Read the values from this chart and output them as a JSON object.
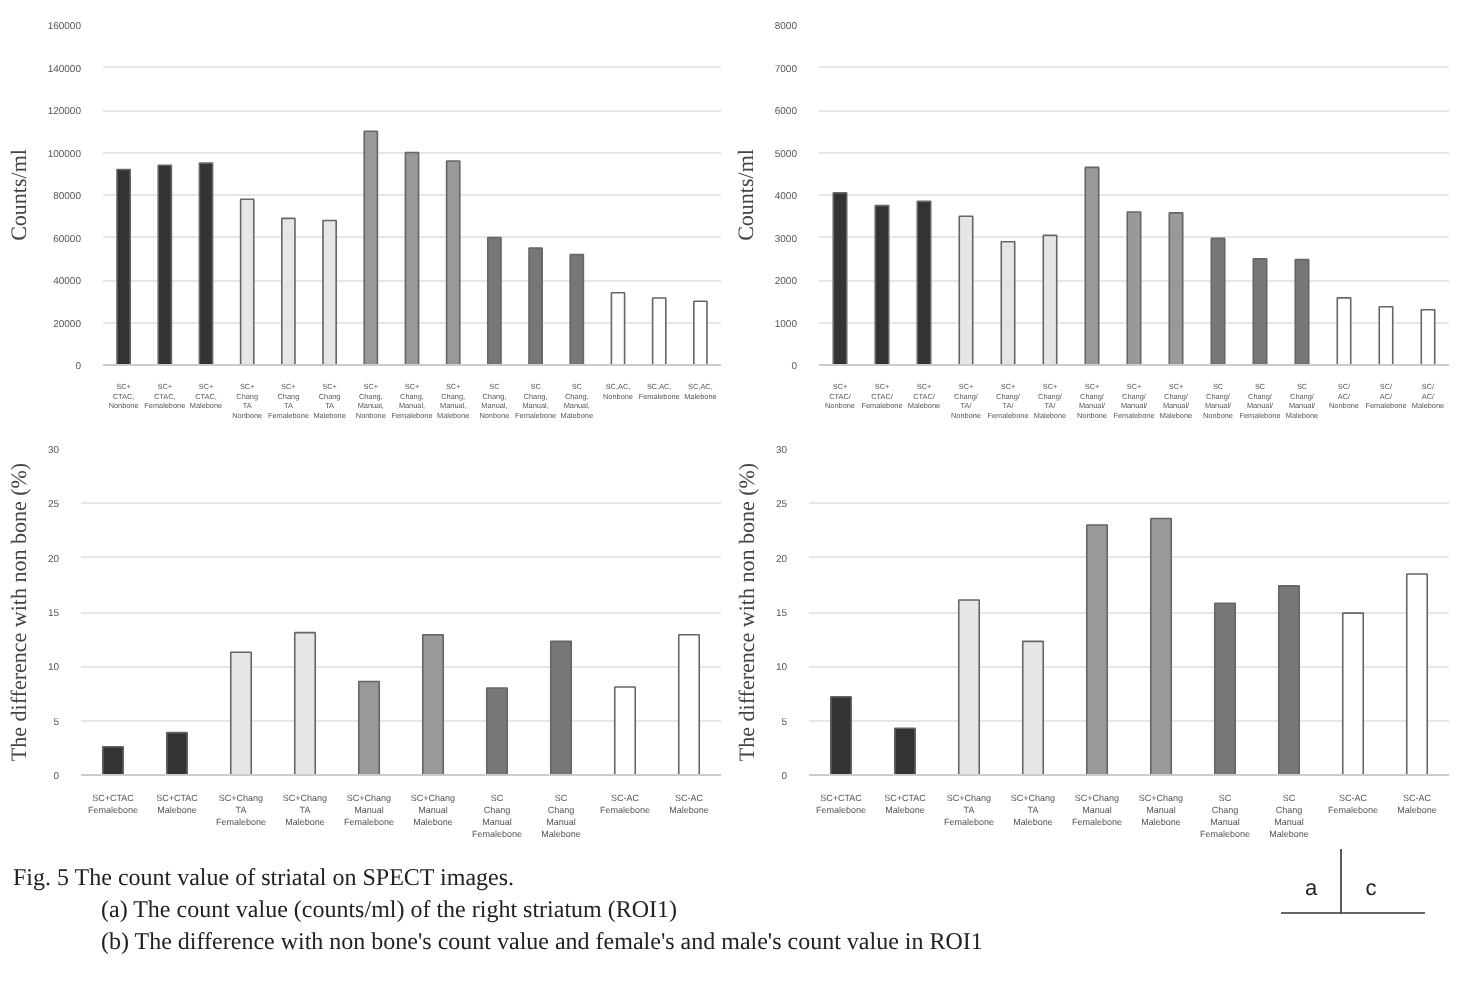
{
  "chart_data": [
    {
      "type": "bar",
      "ylabel": "Counts/ml",
      "categories": [
        "SC+CTAC,\nNonbone",
        "SC+CTAC,\nFemalebone",
        "SC+CTAC,\nMalebone",
        "SC+Chang TA\nNonbone",
        "SC+Chang TA\nFemalebone",
        "SC+Chang TA\nMalebone",
        "SC+Chang,\nManual,\nNonbone",
        "SC+Chang,\nManual,\nFemalebone",
        "SC+Chang,\nManual,\nMalebone",
        "SC Chang,\nManual,\nNonbone",
        "SC Chang,\nManual,\nFemalebone",
        "SC Chang,\nManual,\nMalebone",
        "SC,AC,\nNonbone",
        "SC,AC,\nFemalebone",
        "SC,AC,\nMalebone"
      ],
      "values": [
        92000,
        94000,
        95000,
        78000,
        69000,
        68000,
        110000,
        100000,
        96000,
        60000,
        55000,
        52000,
        34000,
        31500,
        30000
      ],
      "colors": [
        "#333333",
        "#333333",
        "#333333",
        "#e6e6e6",
        "#e6e6e6",
        "#e6e6e6",
        "#999999",
        "#999999",
        "#999999",
        "#777777",
        "#777777",
        "#777777",
        "#ffffff",
        "#ffffff",
        "#ffffff"
      ],
      "ylim": [
        0,
        160000
      ],
      "yticks": [
        0,
        20000,
        40000,
        60000,
        80000,
        100000,
        120000,
        140000,
        160000
      ],
      "grid": "y",
      "annotations": [
        "Fig. 5   The count value of striatal on SPECT images.",
        "(a) The count value (counts/ml) of the right striatum (ROI1)",
        "(b) The difference with non bone's count value and female's and male's count value in ROI1",
        "a",
        "c"
      ]
    },
    {
      "type": "bar",
      "ylabel": "Counts/ml",
      "categories": [
        "SC+CTAC/\nNonbone",
        "SC+CTAC/\nFemalebone",
        "SC+CTAC/\nMalebone",
        "SC+Chang/TA/\nNonbone",
        "SC+Chang/TA/\nFemalebone",
        "SC+Chang/TA/\nMalebone",
        "SC+Chang/\nManual/\nNonbone",
        "SC+Chang/\nManual/\nFemalebone",
        "SC+Chang/\nManual/\nMalebone",
        "SC Chang/\nManual/\nNonbone",
        "SC Chang/\nManual/\nFemalebone",
        "SC Chang/\nManual/\nMalebone",
        "SC/AC/\nNonbone",
        "SC/AC/\nFemalebone",
        "SC/AC/\nMalebone"
      ],
      "values": [
        4050,
        3750,
        3850,
        3500,
        2900,
        3050,
        4650,
        3600,
        3580,
        2980,
        2500,
        2480,
        1580,
        1370,
        1300
      ],
      "colors": [
        "#333333",
        "#333333",
        "#333333",
        "#e6e6e6",
        "#e6e6e6",
        "#e6e6e6",
        "#999999",
        "#999999",
        "#999999",
        "#777777",
        "#777777",
        "#777777",
        "#ffffff",
        "#ffffff",
        "#ffffff"
      ],
      "ylim": [
        0,
        8000
      ],
      "yticks": [
        0,
        1000,
        2000,
        3000,
        4000,
        5000,
        6000,
        7000,
        8000
      ],
      "grid": "y"
    },
    {
      "type": "bar",
      "ylabel": "The difference with non bone (%)",
      "categories": [
        "SC+CTAC\nFemalebone",
        "SC+CTAC Malebone",
        "SC+Chang TA\nFemalebone",
        "SC+Chang TA\nMalebone",
        "SC+Chang Manual\nFemalebone",
        "SC+Chang Manual\nMalebone",
        "SC Chang Manual\nFemalebone",
        "SC Chang Manual\nMalebone",
        "SC-AC Femalebone",
        "SC-AC Malebone"
      ],
      "values": [
        2.6,
        3.9,
        11.3,
        13.1,
        8.6,
        12.9,
        8.0,
        12.3,
        8.1,
        12.9
      ],
      "colors": [
        "#333333",
        "#333333",
        "#e6e6e6",
        "#e6e6e6",
        "#999999",
        "#999999",
        "#777777",
        "#777777",
        "#ffffff",
        "#ffffff"
      ],
      "ylim": [
        0,
        30
      ],
      "yticks": [
        0,
        5,
        10,
        15,
        20,
        25,
        30
      ],
      "grid": "y"
    },
    {
      "type": "bar",
      "ylabel": "The difference with non bone (%)",
      "categories": [
        "SC+CTAC\nFemalebone",
        "SC+CTAC Malebone",
        "SC+Chang TA\nFemalebone",
        "SC+Chang TA\nMalebone",
        "SC+Chang Manual\nFemalebone",
        "SC+Chang Manual\nMalebone",
        "SC Chang Manual\nFemalebone",
        "SC Chang Manual\nMalebone",
        "SC-AC Femalebone",
        "SC-AC Malebone"
      ],
      "values": [
        7.2,
        4.3,
        16.1,
        12.3,
        23.0,
        23.6,
        15.8,
        17.4,
        14.9,
        18.5
      ],
      "colors": [
        "#333333",
        "#333333",
        "#e6e6e6",
        "#e6e6e6",
        "#999999",
        "#999999",
        "#777777",
        "#777777",
        "#ffffff",
        "#ffffff"
      ],
      "ylim": [
        0,
        30
      ],
      "yticks": [
        0,
        5,
        10,
        15,
        20,
        25,
        30
      ],
      "grid": "y"
    }
  ]
}
